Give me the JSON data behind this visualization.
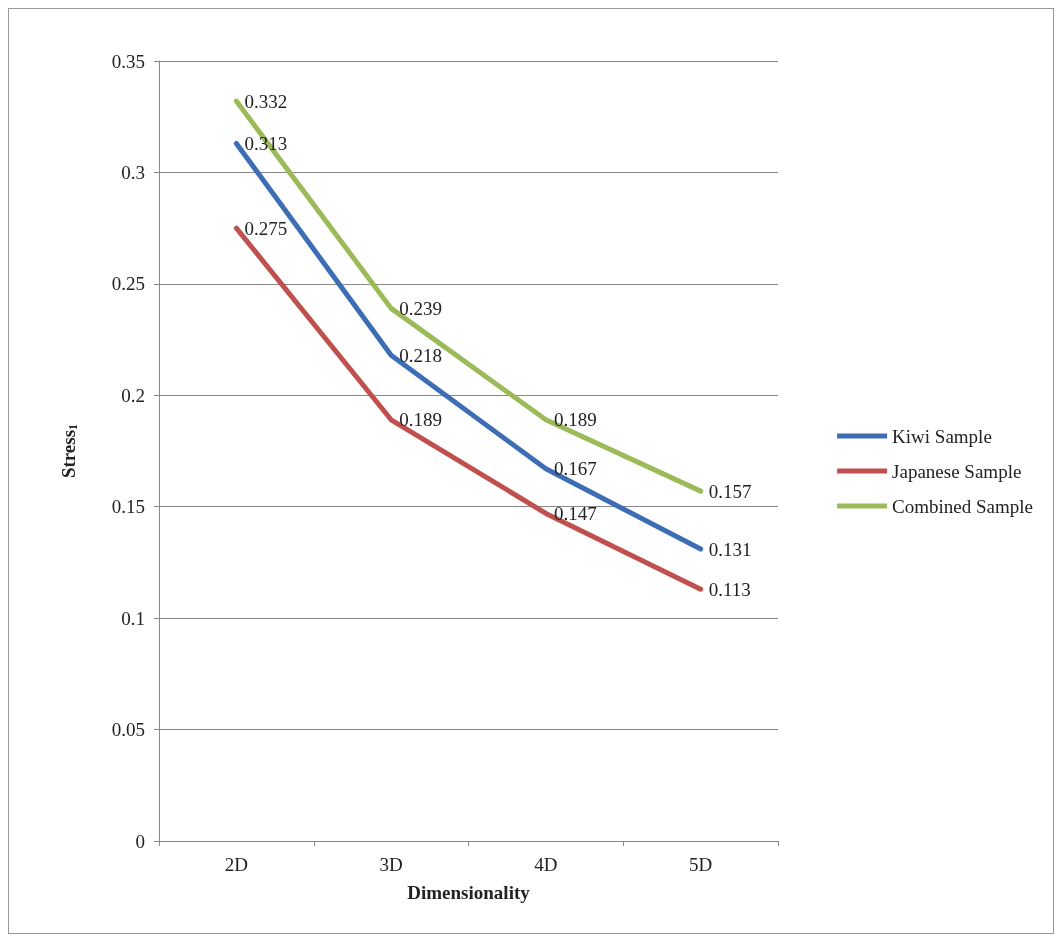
{
  "chart_data": {
    "type": "line",
    "xlabel": "Dimensionality",
    "ylabel": "Stress$_{1}$",
    "categories": [
      "2D",
      "3D",
      "4D",
      "5D"
    ],
    "series": [
      {
        "name": "Kiwi Sample",
        "color": "#3d6db5",
        "values": [
          0.313,
          0.218,
          0.167,
          0.131
        ]
      },
      {
        "name": "Japanese Sample",
        "color": "#c0504d",
        "values": [
          0.275,
          0.189,
          0.147,
          0.113
        ]
      },
      {
        "name": "Combined Sample",
        "color": "#9bbb59",
        "values": [
          0.332,
          0.239,
          0.189,
          0.157
        ]
      }
    ],
    "ylim": [
      0,
      0.35
    ],
    "yticks": [
      0,
      0.05,
      0.1,
      0.15,
      0.2,
      0.25,
      0.3,
      0.35
    ],
    "grid": "y",
    "legend": "right",
    "marker": "none",
    "line_style": "solid",
    "data_labels": true
  }
}
